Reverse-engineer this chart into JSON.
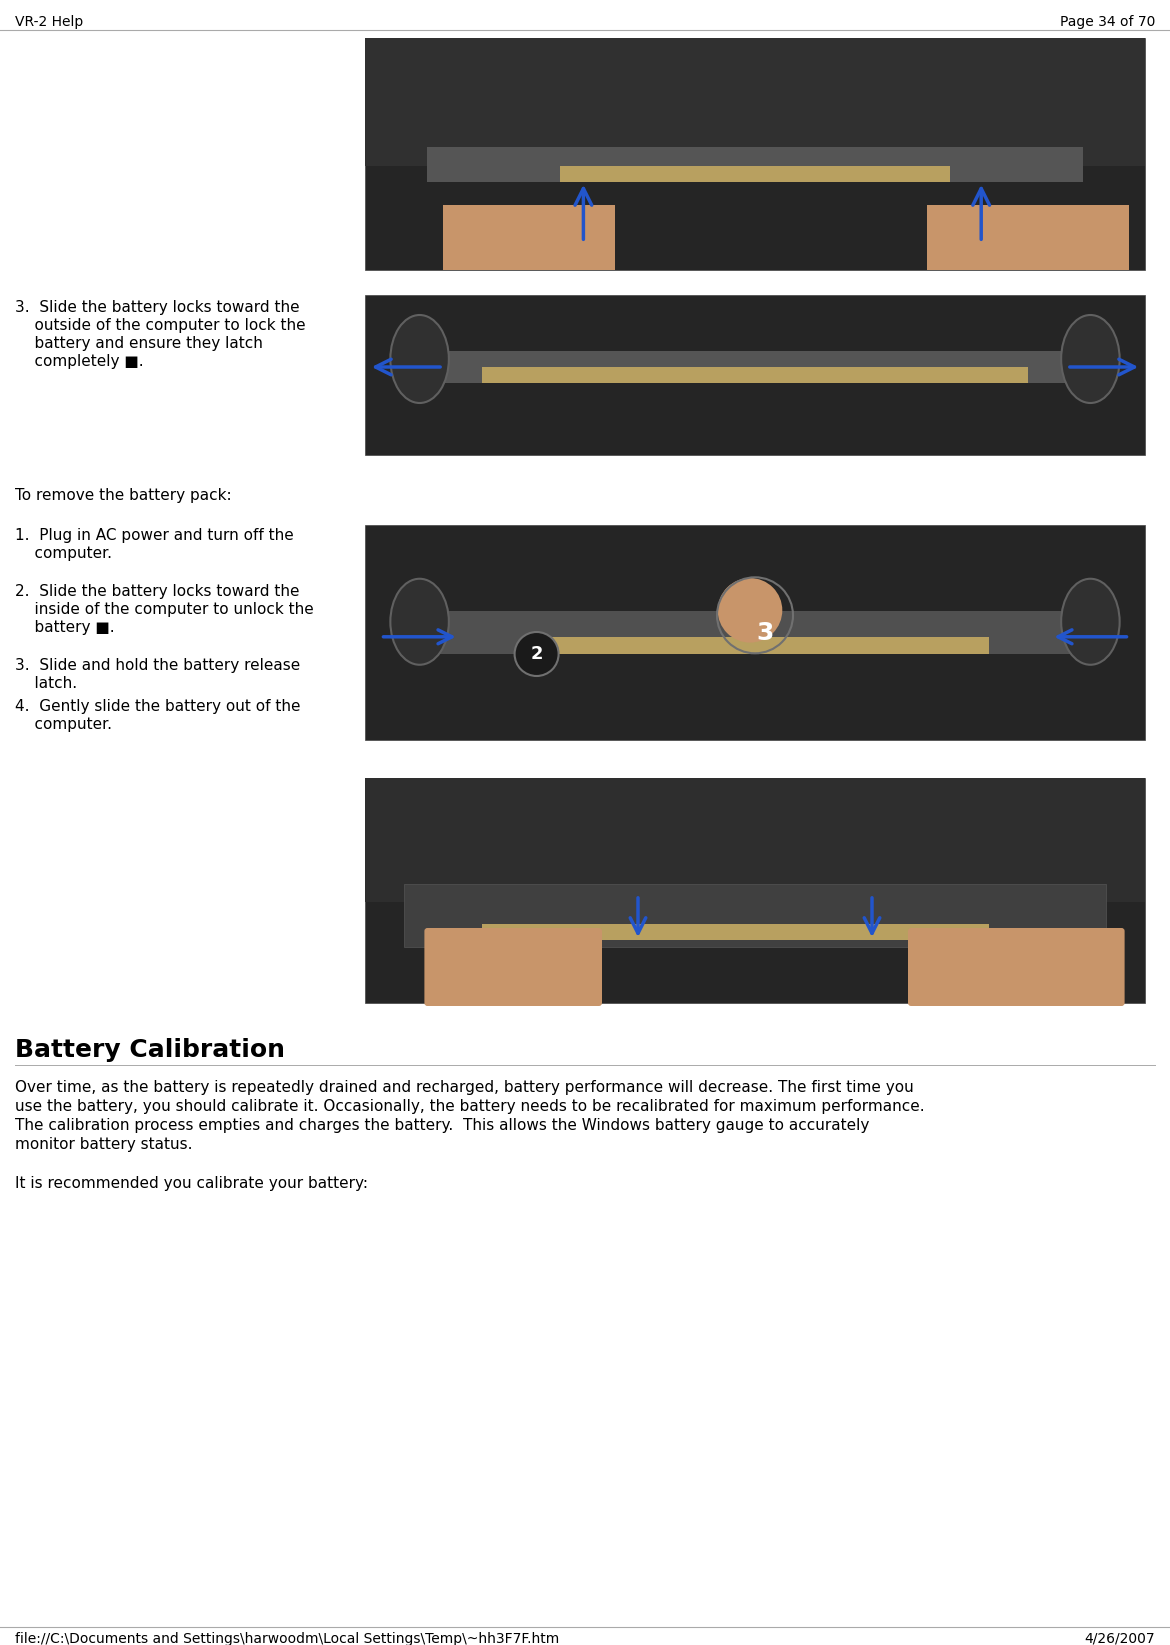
{
  "bg_color": "#ffffff",
  "header_left": "VR-2 Help",
  "header_right": "Page 34 of 70",
  "footer_left": "file://C:\\Documents and Settings\\harwoodm\\Local Settings\\Temp\\~hh3F7F.htm",
  "footer_right": "4/26/2007",
  "header_font_size": 10,
  "body_font_size": 11,
  "font_family": "DejaVu Sans",
  "section_title": "Battery Calibration",
  "section_title_size": 18,
  "para1": "Over time, as the battery is repeatedly drained and recharged, battery performance will decrease. The first time you\nuse the battery, you should calibrate it. Occasionally, the battery needs to be recalibrated for maximum performance.\nThe calibration process empties and charges the battery.  This allows the Windows battery gauge to accurately\nmonitor battery status.",
  "para2": "It is recommended you calibrate your battery:",
  "remove_heading": "To remove the battery pack:",
  "step3_text_line1": "3.  Slide the battery locks toward the",
  "step3_text_line2": "    outside of the computer to lock the",
  "step3_text_line3": "    battery and ensure they latch",
  "step3_text_line4": "    completely ■.",
  "remove_step1_l1": "1.  Plug in AC power and turn off the",
  "remove_step1_l2": "    computer.",
  "remove_step2_l1": "2.  Slide the battery locks toward the",
  "remove_step2_l2": "    inside of the computer to unlock the",
  "remove_step2_l3": "    battery ■.",
  "remove_step3_l1": "3.  Slide and hold the battery release",
  "remove_step3_l2": "    latch.",
  "remove_step4_l1": "4.  Gently slide the battery out of the",
  "remove_step4_l2": "    computer.",
  "laptop_dark": "#252525",
  "laptop_mid": "#3a3a3a",
  "laptop_light": "#4a4a4a",
  "battery_color": "#8a8a8a",
  "battery_strip": "#b8a060",
  "hand_color": "#c8956a",
  "arrow_color": "#2255cc",
  "arrow_fill": "#3377ee",
  "divider_color": "#aaaaaa",
  "lock_color": "#303030",
  "lock_edge": "#606060",
  "number_bg": "#1a1a1a"
}
